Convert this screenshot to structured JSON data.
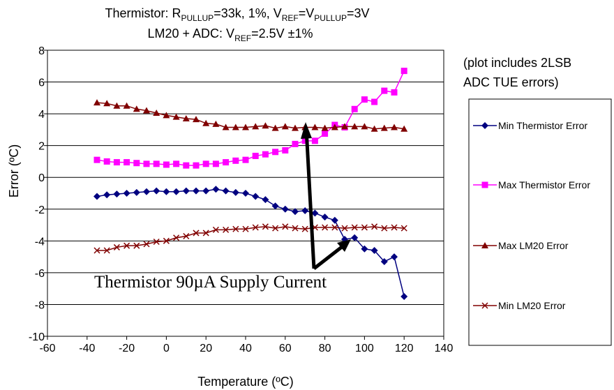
{
  "chart_data": {
    "type": "line",
    "title": {
      "line1": {
        "a": "Thermistor: R",
        "a_sub": "PULLUP",
        "b": "=33k, 1%, V",
        "b_sub": "REF",
        "c": "=V",
        "c_sub": "PULLUP",
        "d": "=3V"
      },
      "line2": {
        "a": "LM20 + ADC: V",
        "a_sub": "REF",
        "b": "=2.5V ±1%"
      }
    },
    "xlabel": "Temperature (ºC)",
    "ylabel": "Error (ºC)",
    "xlim": [
      -60,
      140
    ],
    "ylim": [
      -10,
      8
    ],
    "x_ticks": [
      "-60",
      "-40",
      "-20",
      "0",
      "20",
      "40",
      "60",
      "80",
      "100",
      "120",
      "140"
    ],
    "y_ticks": [
      "8",
      "6",
      "4",
      "2",
      "0",
      "-2",
      "-4",
      "-6",
      "-8",
      "-10"
    ],
    "x_tick_values": [
      -60,
      -40,
      -20,
      0,
      20,
      40,
      60,
      80,
      100,
      120,
      140
    ],
    "y_tick_values": [
      8,
      6,
      4,
      2,
      0,
      -2,
      -4,
      -6,
      -8,
      -10
    ],
    "grid": "horizontal",
    "legend_placement": "right",
    "note": [
      "(plot includes 2LSB",
      "ADC TUE errors)"
    ],
    "annotation": "Thermistor 90µA Supply Current",
    "x": [
      -35,
      -30,
      -25,
      -20,
      -15,
      -10,
      -5,
      0,
      5,
      10,
      15,
      20,
      25,
      30,
      35,
      40,
      45,
      50,
      55,
      60,
      65,
      70,
      75,
      80,
      85,
      90,
      95,
      100,
      105,
      110,
      115,
      120
    ],
    "series": [
      {
        "name": "Min Thermistor Error",
        "color": "#000080",
        "marker": "diamond",
        "values": [
          -1.2,
          -1.1,
          -1.05,
          -1.0,
          -0.95,
          -0.9,
          -0.85,
          -0.9,
          -0.9,
          -0.85,
          -0.85,
          -0.85,
          -0.75,
          -0.85,
          -0.95,
          -1.0,
          -1.2,
          -1.4,
          -1.8,
          -2.0,
          -2.15,
          -2.1,
          -2.25,
          -2.5,
          -2.7,
          -3.9,
          -3.8,
          -4.5,
          -4.6,
          -5.3,
          -5.0,
          -7.5
        ]
      },
      {
        "name": "Max Thermistor Error",
        "color": "#FF00FF",
        "marker": "square",
        "values": [
          1.1,
          1.0,
          0.95,
          0.95,
          0.9,
          0.85,
          0.85,
          0.8,
          0.85,
          0.75,
          0.75,
          0.85,
          0.85,
          0.95,
          1.05,
          1.1,
          1.35,
          1.45,
          1.6,
          1.7,
          2.1,
          2.3,
          2.3,
          2.75,
          3.3,
          3.15,
          4.3,
          4.9,
          4.75,
          5.45,
          5.35,
          6.7
        ]
      },
      {
        "name": "Max LM20 Error",
        "color": "#800000",
        "marker": "triangle",
        "values": [
          4.7,
          4.65,
          4.5,
          4.5,
          4.3,
          4.2,
          4.05,
          3.9,
          3.8,
          3.7,
          3.65,
          3.4,
          3.35,
          3.15,
          3.15,
          3.15,
          3.2,
          3.25,
          3.1,
          3.2,
          3.1,
          3.15,
          3.15,
          3.1,
          3.15,
          3.2,
          3.2,
          3.2,
          3.05,
          3.1,
          3.15,
          3.05
        ]
      },
      {
        "name": "Min LM20 Error",
        "color": "#800000",
        "marker": "x",
        "values": [
          -4.6,
          -4.6,
          -4.4,
          -4.3,
          -4.3,
          -4.2,
          -4.05,
          -4.0,
          -3.8,
          -3.7,
          -3.5,
          -3.5,
          -3.3,
          -3.3,
          -3.25,
          -3.25,
          -3.15,
          -3.1,
          -3.2,
          -3.1,
          -3.2,
          -3.25,
          -3.15,
          -3.15,
          -3.15,
          -3.2,
          -3.15,
          -3.15,
          -3.1,
          -3.2,
          -3.15,
          -3.2
        ]
      }
    ]
  }
}
